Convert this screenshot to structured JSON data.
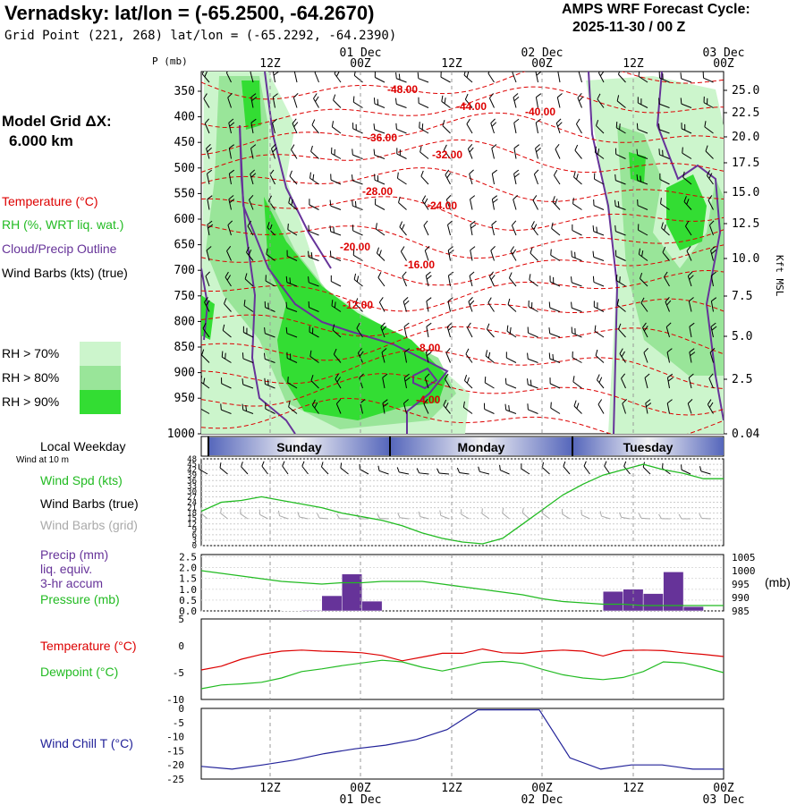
{
  "header": {
    "station": "Vernadsky:",
    "latlon": "lat/lon = (-65.2500, -64.2670)",
    "grid_point": "Grid Point (221, 268) lat/lon = (-65.2292, -64.2390)",
    "cycle_label": "AMPS WRF Forecast Cycle:",
    "cycle_value": "2025-11-30 / 00  Z"
  },
  "sidebar": {
    "model_grid_label": "Model Grid ΔX:",
    "model_grid_value": "6.000 km",
    "legend_temperature": "Temperature (°C)",
    "legend_rh": "RH (%, WRT liq. wat.)",
    "legend_cloud": "Cloud/Precip Outline",
    "legend_wind": "Wind Barbs (kts) (true)",
    "rh_levels": [
      "RH > 70%",
      "RH > 80%",
      "RH > 90%"
    ],
    "rh_colors": [
      "#ccf5cc",
      "#99e599",
      "#33dd33"
    ]
  },
  "time_axis": {
    "ticks": [
      "12Z",
      "00Z",
      "12Z",
      "00Z",
      "12Z",
      "00Z"
    ],
    "dates": [
      "01 Dec",
      "02 Dec",
      "03 Dec"
    ],
    "local_weekday_label": "Local Weekday",
    "days": [
      "Sunday",
      "Monday",
      "Tuesday"
    ],
    "wind_at_label": "Wind at 10 m"
  },
  "chart_data": [
    {
      "type": "contour",
      "id": "cross_section",
      "ylabel": "P (mb)",
      "pressure_levels": [
        350,
        400,
        450,
        500,
        550,
        600,
        650,
        700,
        750,
        800,
        850,
        900,
        950,
        1000
      ],
      "height_label": "Kft MSL",
      "height_ticks": [
        "25.0",
        "22.5",
        "20.0",
        "17.5",
        "15.0",
        "12.5",
        "10.0",
        "7.5",
        "5.0",
        "2.5",
        "0.04"
      ],
      "temperature_labels": [
        "-48.00",
        "-44.00",
        "-40.00",
        "-36.00",
        "-32.00",
        "-28.00",
        "-24.00",
        "-20.00",
        "-16.00",
        "-12.00",
        "-8.00",
        "-4.00"
      ],
      "temp_color": "#dd0000",
      "cloud_color": "#663399"
    },
    {
      "type": "line",
      "id": "wind_speed",
      "ylabel": "Wind Spd (kts)",
      "ylim": [
        0,
        48
      ],
      "yticks": [
        "48",
        "45",
        "42",
        "39",
        "36",
        "33",
        "30",
        "27",
        "24",
        "21",
        "18",
        "15",
        "12",
        "9",
        "6",
        "3",
        "0"
      ],
      "series_labels": [
        "Wind Spd (kts)",
        "Wind Barbs (true)",
        "Wind Barbs (grid)"
      ],
      "series_colors": [
        "#22bb22",
        "#000000",
        "#aaaaaa"
      ],
      "values": [
        19,
        24,
        25,
        27,
        25,
        23,
        21,
        18,
        16,
        14,
        11,
        7,
        4,
        2,
        1,
        4,
        12,
        20,
        28,
        34,
        39,
        42,
        45,
        42,
        40,
        37,
        37
      ]
    },
    {
      "type": "bar",
      "id": "precip_pressure",
      "ylabel_left": [
        "Precip (mm)",
        "liq. equiv.",
        "3-hr accum"
      ],
      "ylabel_right": "(mb)",
      "pressure_label": "Pressure (mb)",
      "left_ticks": [
        "2.5",
        "2.0",
        "1.5",
        "1.0",
        "0.5",
        "0.0"
      ],
      "right_ticks": [
        "1005",
        "1000",
        "995",
        "990",
        "985"
      ],
      "precip_values": [
        0,
        0,
        0,
        0,
        0.02,
        0.03,
        0.7,
        1.7,
        0.45,
        0,
        0,
        0,
        0,
        0,
        0,
        0,
        0,
        0,
        0,
        0,
        0.9,
        1.0,
        0.8,
        1.8,
        0.2,
        0
      ],
      "precip_color": "#663399",
      "pressure_values": [
        1000,
        999,
        998,
        997,
        996,
        995.5,
        995,
        995.5,
        995.5,
        996,
        996,
        996,
        995,
        994,
        993,
        992,
        991,
        989.5,
        988.5,
        988,
        987.5,
        987.5,
        987,
        987,
        987,
        987,
        987
      ],
      "pressure_color": "#22bb22"
    },
    {
      "type": "line",
      "id": "temp_dew",
      "ylim": [
        -10,
        5
      ],
      "yticks": [
        "5",
        "0",
        "-5",
        "-10"
      ],
      "series": [
        {
          "name": "Temperature (°C)",
          "color": "#dd0000",
          "values": [
            -4.5,
            -3.8,
            -2.5,
            -1.6,
            -1.0,
            -0.8,
            -1.0,
            -1.1,
            -1.3,
            -1.8,
            -2.8,
            -2.1,
            -1.4,
            -1.4,
            -0.6,
            -1.3,
            -1.4,
            -1.0,
            -0.8,
            -1.0,
            -1.9,
            -0.9,
            -0.8,
            -0.9,
            -1.3,
            -1.6,
            -2.0
          ]
        },
        {
          "name": "Dewpoint (°C)",
          "color": "#22bb22",
          "values": [
            -8.0,
            -7.3,
            -7.1,
            -6.8,
            -6.0,
            -4.8,
            -4.3,
            -3.7,
            -3.2,
            -2.7,
            -3.0,
            -4.0,
            -4.7,
            -3.9,
            -3.1,
            -2.9,
            -3.3,
            -4.4,
            -5.4,
            -6.0,
            -6.3,
            -5.9,
            -4.8,
            -3.0,
            -3.2,
            -4.0,
            -5.0
          ]
        }
      ]
    },
    {
      "type": "line",
      "id": "wind_chill",
      "ylabel": "Wind Chill T (°C)",
      "ylim": [
        -25,
        0
      ],
      "yticks": [
        "0",
        "-5",
        "-10",
        "-15",
        "-20",
        "-25"
      ],
      "color": "#222299",
      "values": [
        -20.5,
        -21.5,
        -20,
        -18.3,
        -16,
        -14.3,
        -13,
        -11,
        -7.5,
        -0.5,
        -0.5,
        -0.5,
        -17.5,
        -21.5,
        -20,
        -20,
        -21.5,
        -21.5
      ]
    }
  ]
}
